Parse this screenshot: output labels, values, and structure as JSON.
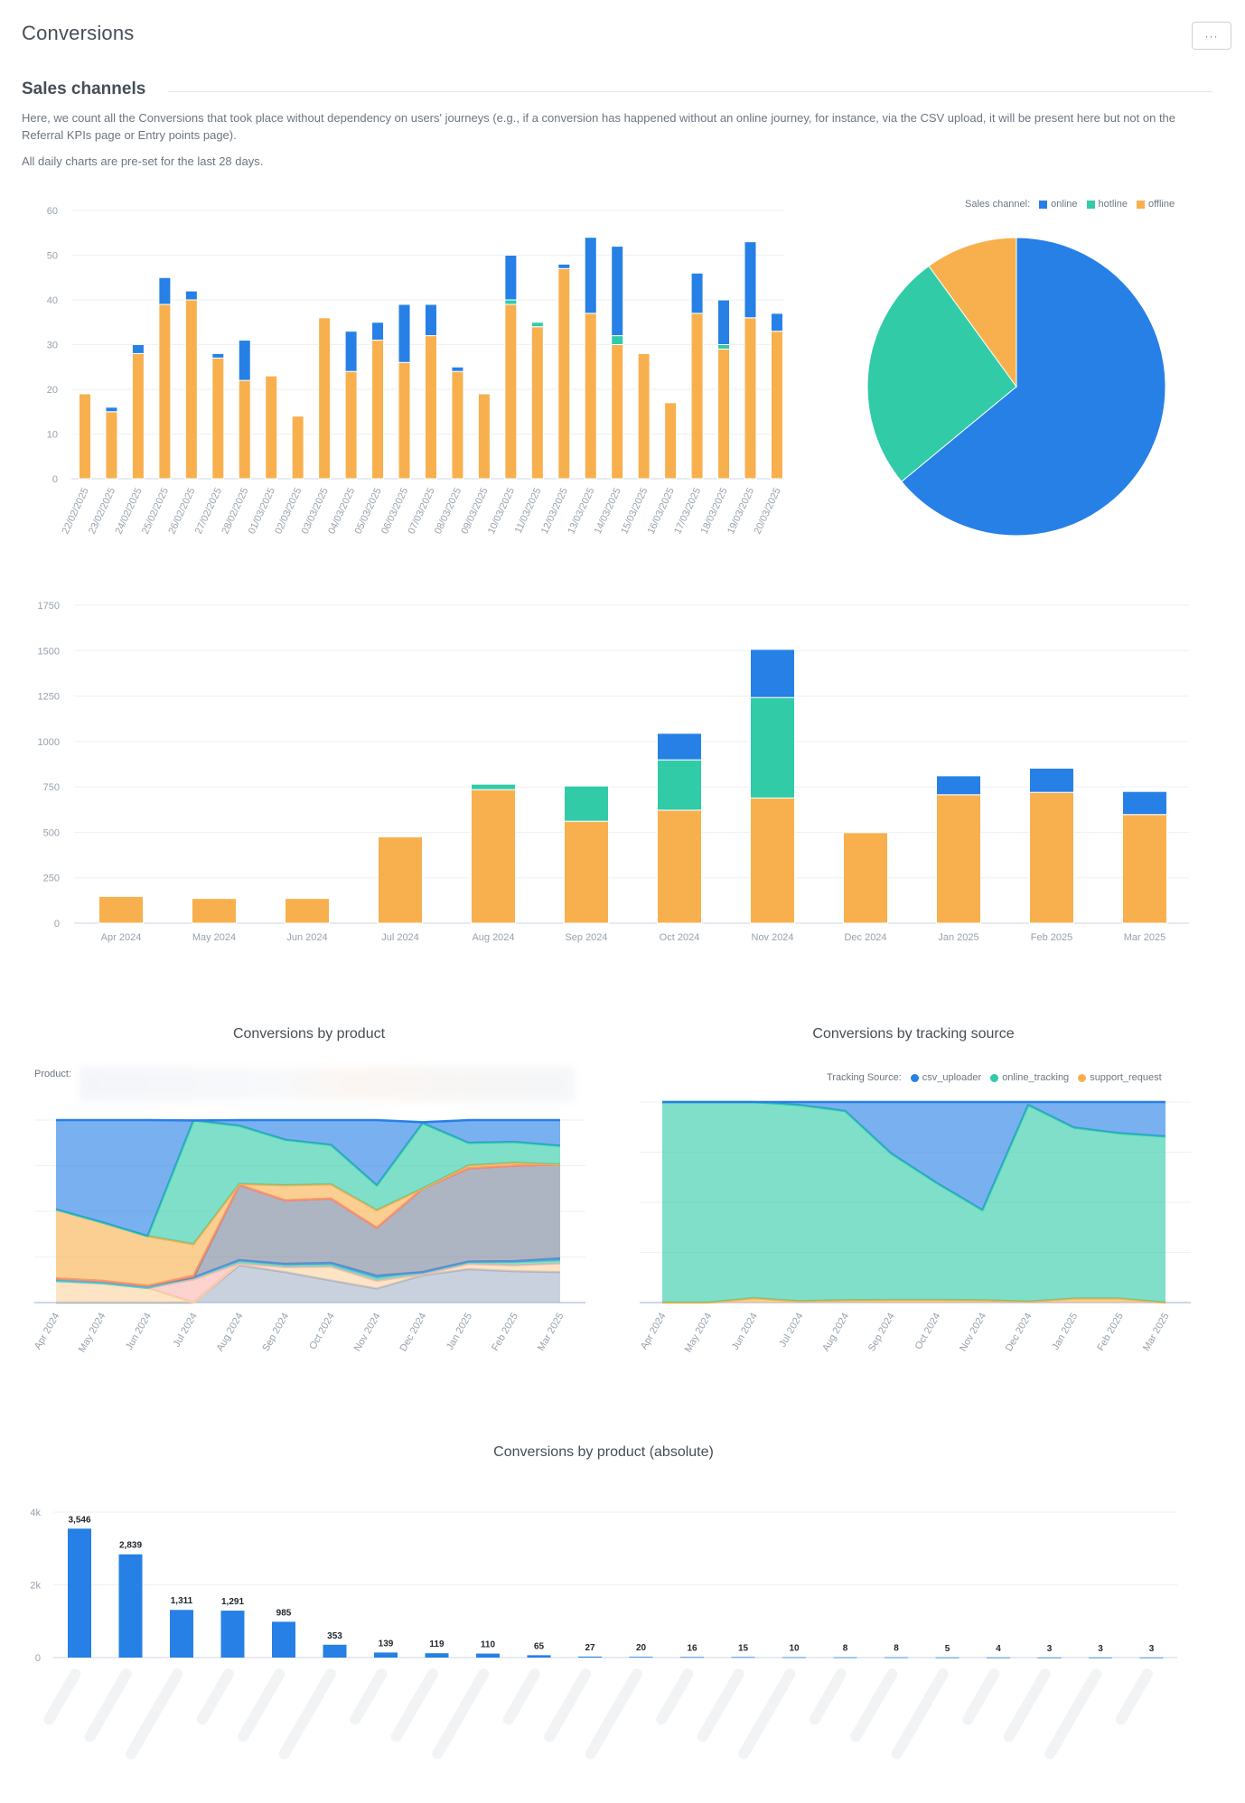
{
  "header": {
    "title": "Conversions",
    "menu_button_label": "···"
  },
  "section": {
    "title": "Sales channels",
    "description": "Here, we count all the Conversions that took place without dependency on users' journeys (e.g., if a conversion has happened without an online journey, for instance, via the CSV upload, it will be present here but not on the Referral KPIs page or Entry points page).",
    "note": "All daily charts are pre-set for the last 28 days."
  },
  "colors": {
    "online": "#2680e6",
    "hotline": "#31cba8",
    "offline": "#f8b04e",
    "grid": "#eef0f2",
    "axis": "#ccd6e6",
    "tick_text": "#97a1ad"
  },
  "chart_data": [
    {
      "id": "daily-sales-channel",
      "type": "bar",
      "stacked": true,
      "title": "",
      "xlabel": "",
      "ylabel": "",
      "ylim": [
        0,
        60
      ],
      "yticks": [
        0,
        10,
        20,
        30,
        40,
        50,
        60
      ],
      "grid": true,
      "categories": [
        "22/02/2025",
        "23/02/2025",
        "24/02/2025",
        "25/02/2025",
        "26/02/2025",
        "27/02/2025",
        "28/02/2025",
        "01/03/2025",
        "02/03/2025",
        "03/03/2025",
        "04/03/2025",
        "05/03/2025",
        "06/03/2025",
        "07/03/2025",
        "08/03/2025",
        "09/03/2025",
        "10/03/2025",
        "11/03/2025",
        "12/03/2025",
        "13/03/2025",
        "14/03/2025",
        "15/03/2025",
        "16/03/2025",
        "17/03/2025",
        "18/03/2025",
        "19/03/2025",
        "20/03/2025"
      ],
      "series": [
        {
          "name": "offline",
          "values": [
            19,
            15,
            28,
            39,
            40,
            27,
            22,
            23,
            14,
            36,
            24,
            31,
            26,
            32,
            24,
            19,
            39,
            34,
            47,
            37,
            30,
            28,
            17,
            37,
            29,
            36,
            33
          ]
        },
        {
          "name": "hotline",
          "values": [
            0,
            0,
            0,
            0,
            0,
            0,
            0,
            0,
            0,
            0,
            0,
            0,
            0,
            0,
            0,
            0,
            1,
            1,
            0,
            0,
            2,
            0,
            0,
            0,
            1,
            0,
            0
          ]
        },
        {
          "name": "online",
          "values": [
            0,
            1,
            2,
            6,
            2,
            1,
            9,
            0,
            0,
            0,
            9,
            4,
            13,
            7,
            1,
            0,
            10,
            0,
            1,
            17,
            20,
            0,
            0,
            9,
            10,
            17,
            4
          ]
        }
      ]
    },
    {
      "id": "sales-channel-share",
      "type": "pie",
      "title": "",
      "legend_title": "Sales channel:",
      "legend_position": "top-right",
      "labels": [
        "online",
        "hotline",
        "offline"
      ],
      "values": [
        64,
        26,
        10
      ]
    },
    {
      "id": "monthly-sales-channel",
      "type": "bar",
      "stacked": true,
      "title": "",
      "xlabel": "",
      "ylabel": "",
      "ylim": [
        0,
        1750
      ],
      "yticks": [
        0,
        250,
        500,
        750,
        1000,
        1250,
        1500,
        1750
      ],
      "grid": true,
      "categories": [
        "Apr 2024",
        "May 2024",
        "Jun 2024",
        "Jul 2024",
        "Aug 2024",
        "Sep 2024",
        "Oct 2024",
        "Nov 2024",
        "Dec 2024",
        "Jan 2025",
        "Feb 2025",
        "Mar 2025"
      ],
      "series": [
        {
          "name": "offline",
          "values": [
            147,
            136,
            136,
            475,
            735,
            561,
            622,
            689,
            498,
            707,
            720,
            598
          ]
        },
        {
          "name": "hotline",
          "values": [
            0,
            0,
            0,
            0,
            30,
            194,
            277,
            553,
            0,
            0,
            0,
            0
          ]
        },
        {
          "name": "online",
          "values": [
            0,
            0,
            0,
            0,
            0,
            0,
            146,
            265,
            0,
            104,
            133,
            127
          ]
        }
      ]
    },
    {
      "id": "conversions-by-product",
      "type": "area",
      "stacked": "percent",
      "title": "Conversions by product",
      "legend_title": "Product:",
      "legend_position": "top",
      "ylim": [
        0,
        100
      ],
      "grid": true,
      "categories": [
        "Apr 2024",
        "May 2024",
        "Jun 2024",
        "Jul 2024",
        "Aug 2024",
        "Sep 2024",
        "Oct 2024",
        "Nov 2024",
        "Dec 2024",
        "Jan 2025",
        "Feb 2025",
        "Mar 2025"
      ],
      "series": [
        {
          "name": "series-1",
          "color": "#c3ccdb",
          "values": [
            0,
            0,
            0,
            0,
            20.5,
            16.7,
            12.1,
            7.7,
            15,
            18.3,
            17.2,
            16.7
          ]
        },
        {
          "name": "series-2",
          "color": "#fde2c0",
          "values": [
            11.8,
            10.6,
            8,
            0,
            1,
            2.7,
            7.6,
            4.3,
            0.5,
            2.9,
            3.3,
            4.8
          ]
        },
        {
          "name": "series-3",
          "color": "#fdd6d3",
          "values": [
            0,
            0,
            0,
            12.6,
            0,
            0,
            0,
            0,
            0,
            0,
            0,
            0
          ]
        },
        {
          "name": "series-4",
          "color": "#8ce2cd",
          "values": [
            0,
            0,
            0,
            1.2,
            1.2,
            1.2,
            1.2,
            1.5,
            1.2,
            1.0,
            1.6,
            1.5
          ]
        },
        {
          "name": "series-5",
          "color": "#7fb1ee",
          "values": [
            1.4,
            1.3,
            1.2,
            0,
            0.6,
            0.6,
            0.9,
            1.2,
            0,
            0.3,
            0.6,
            1.2
          ]
        },
        {
          "name": "series-6",
          "color": "#adb6c6",
          "values": [
            0,
            0,
            0,
            0,
            41.2,
            34.8,
            35.2,
            26.3,
            45.8,
            51,
            52.3,
            51.5
          ]
        },
        {
          "name": "series-7",
          "color": "#f9aba5",
          "values": [
            0,
            0,
            0,
            1,
            0,
            0,
            0,
            0,
            0,
            0,
            0,
            0
          ]
        },
        {
          "name": "series-8",
          "color": "#f8cd8f",
          "values": [
            37.8,
            32.1,
            27.2,
            17.2,
            0.5,
            8.3,
            7.8,
            9.6,
            0,
            1.6,
            1.6,
            0
          ]
        },
        {
          "name": "series-9",
          "color": "#81dfc8",
          "values": [
            0,
            0,
            0,
            67.8,
            31.9,
            24.9,
            21.6,
            13.6,
            35.8,
            12.4,
            11.4,
            10.2
          ]
        },
        {
          "name": "series-10",
          "color": "#78adee",
          "values": [
            49,
            56,
            63.6,
            0,
            3.1,
            10.8,
            14.1,
            35.8,
            0.5,
            12.5,
            12.0,
            14.1
          ]
        }
      ],
      "legend_redacted": true
    },
    {
      "id": "conversions-by-tracking-source",
      "type": "area",
      "stacked": "percent",
      "title": "Conversions by tracking source",
      "legend_title": "Tracking Source:",
      "legend_position": "top-right",
      "ylim": [
        0,
        100
      ],
      "grid": true,
      "categories": [
        "Apr 2024",
        "May 2024",
        "Jun 2024",
        "Jul 2024",
        "Aug 2024",
        "Sep 2024",
        "Oct 2024",
        "Nov 2024",
        "Dec 2024",
        "Jan 2025",
        "Feb 2025",
        "Mar 2025"
      ],
      "series": [
        {
          "name": "support_request",
          "color": "#f8b04e",
          "values": [
            0,
            0,
            2.2,
            0.7,
            1.2,
            1.3,
            1.3,
            1.2,
            0.5,
            2.0,
            2.0,
            0
          ]
        },
        {
          "name": "online_tracking",
          "color": "#31cba8",
          "values": [
            100,
            100,
            97.8,
            97.8,
            94.3,
            73.1,
            58.3,
            44.9,
            98.0,
            85.2,
            82.4,
            82.8
          ]
        },
        {
          "name": "csv_uploader",
          "color": "#2680e6",
          "values": [
            0,
            0,
            0,
            1.5,
            4.5,
            25.6,
            40.4,
            53.9,
            1.5,
            12.8,
            15.6,
            17.2
          ]
        }
      ]
    },
    {
      "id": "conversions-by-product-absolute",
      "type": "bar",
      "title": "Conversions by product (absolute)",
      "ylim": [
        0,
        4000
      ],
      "yticks": [
        0,
        2000,
        4000
      ],
      "ytick_labels": [
        "0",
        "2k",
        "4k"
      ],
      "grid": true,
      "categories_redacted": true,
      "values": [
        3546,
        2839,
        1311,
        1291,
        985,
        353,
        139,
        119,
        110,
        65,
        27,
        20,
        16,
        15,
        10,
        8,
        8,
        5,
        4,
        3,
        3,
        3
      ],
      "data_labels": [
        "3,546",
        "2,839",
        "1,311",
        "1,291",
        "985",
        "353",
        "139",
        "119",
        "110",
        "65",
        "27",
        "20",
        "16",
        "15",
        "10",
        "8",
        "8",
        "5",
        "4",
        "3",
        "3",
        "3"
      ]
    }
  ]
}
